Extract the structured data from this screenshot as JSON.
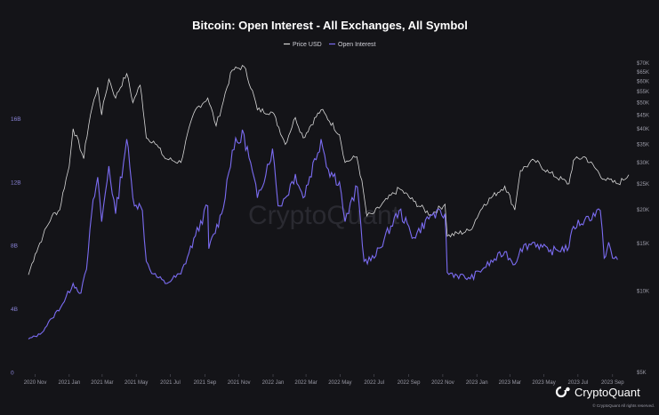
{
  "chart_data": {
    "type": "line",
    "title": "Bitcoin: Open Interest - All Exchanges, All Symbol",
    "legend_position": "top-center",
    "grid": false,
    "x_ticks": [
      "2020 Nov",
      "2021 Jan",
      "2021 Mar",
      "2021 May",
      "2021 Jul",
      "2021 Sep",
      "2021 Nov",
      "2022 Jan",
      "2022 Mar",
      "2022 May",
      "2022 Jul",
      "2022 Sep",
      "2022 Nov",
      "2023 Jan",
      "2023 Mar",
      "2023 May",
      "2023 Jul",
      "2023 Sep"
    ],
    "x_range": [
      "2020-10-20",
      "2023-09-30"
    ],
    "y_left": {
      "ticks": [
        "0",
        "4B",
        "8B",
        "12B",
        "16B"
      ],
      "range": [
        0,
        20
      ]
    },
    "y_right": {
      "scale": "log",
      "ticks": [
        "$5K",
        "$10K",
        "$15K",
        "$20K",
        "$25K",
        "$30K",
        "$35K",
        "$40K",
        "$45K",
        "$50K",
        "$55K",
        "$60K",
        "$65K",
        "$70K"
      ],
      "range": [
        5,
        75
      ]
    },
    "series": [
      {
        "name": "Price USD",
        "color": "#d8d8d8",
        "axis": "right",
        "points": [
          [
            "2020-10-20",
            11.5
          ],
          [
            "2020-11-01",
            13.7
          ],
          [
            "2020-11-15",
            16.0
          ],
          [
            "2020-12-01",
            19.0
          ],
          [
            "2020-12-15",
            20.0
          ],
          [
            "2021-01-01",
            29.0
          ],
          [
            "2021-01-08",
            40.0
          ],
          [
            "2021-01-27",
            31.0
          ],
          [
            "2021-02-08",
            45.0
          ],
          [
            "2021-02-21",
            57.0
          ],
          [
            "2021-02-28",
            45.0
          ],
          [
            "2021-03-13",
            61.0
          ],
          [
            "2021-03-25",
            52.0
          ],
          [
            "2021-04-14",
            64.0
          ],
          [
            "2021-04-25",
            50.0
          ],
          [
            "2021-05-08",
            58.0
          ],
          [
            "2021-05-19",
            37.0
          ],
          [
            "2021-06-01",
            36.0
          ],
          [
            "2021-06-22",
            31.0
          ],
          [
            "2021-07-20",
            30.0
          ],
          [
            "2021-08-15",
            47.0
          ],
          [
            "2021-09-06",
            52.0
          ],
          [
            "2021-09-21",
            41.0
          ],
          [
            "2021-10-01",
            48.0
          ],
          [
            "2021-10-20",
            66.0
          ],
          [
            "2021-11-10",
            68.0
          ],
          [
            "2021-12-04",
            47.0
          ],
          [
            "2021-12-31",
            46.0
          ],
          [
            "2022-01-23",
            35.0
          ],
          [
            "2022-02-10",
            44.0
          ],
          [
            "2022-02-24",
            37.0
          ],
          [
            "2022-03-28",
            47.0
          ],
          [
            "2022-04-30",
            38.0
          ],
          [
            "2022-05-10",
            30.0
          ],
          [
            "2022-05-31",
            31.5
          ],
          [
            "2022-06-18",
            19.0
          ],
          [
            "2022-07-01",
            19.5
          ],
          [
            "2022-08-15",
            24.0
          ],
          [
            "2022-09-10",
            21.5
          ],
          [
            "2022-10-10",
            19.2
          ],
          [
            "2022-11-05",
            21.0
          ],
          [
            "2022-11-09",
            16.0
          ],
          [
            "2022-12-20",
            16.8
          ],
          [
            "2023-01-14",
            21.0
          ],
          [
            "2023-02-20",
            24.5
          ],
          [
            "2023-03-10",
            20.0
          ],
          [
            "2023-03-20",
            28.0
          ],
          [
            "2023-04-14",
            30.5
          ],
          [
            "2023-05-10",
            27.5
          ],
          [
            "2023-06-15",
            25.0
          ],
          [
            "2023-06-23",
            30.5
          ],
          [
            "2023-07-13",
            31.5
          ],
          [
            "2023-08-17",
            26.0
          ],
          [
            "2023-09-11",
            25.0
          ],
          [
            "2023-09-30",
            27.0
          ]
        ]
      },
      {
        "name": "Open Interest",
        "color": "#7b6cf2",
        "axis": "left",
        "points": [
          [
            "2020-10-20",
            2.1
          ],
          [
            "2020-11-10",
            2.4
          ],
          [
            "2020-12-01",
            3.4
          ],
          [
            "2020-12-20",
            4.3
          ],
          [
            "2021-01-08",
            5.6
          ],
          [
            "2021-01-22",
            5.0
          ],
          [
            "2021-02-01",
            6.5
          ],
          [
            "2021-02-10",
            10.0
          ],
          [
            "2021-02-21",
            12.3
          ],
          [
            "2021-02-28",
            9.5
          ],
          [
            "2021-03-13",
            13.0
          ],
          [
            "2021-03-25",
            10.0
          ],
          [
            "2021-04-14",
            14.7
          ],
          [
            "2021-04-25",
            11.0
          ],
          [
            "2021-05-12",
            10.2
          ],
          [
            "2021-05-19",
            7.0
          ],
          [
            "2021-06-01",
            6.2
          ],
          [
            "2021-06-22",
            5.6
          ],
          [
            "2021-07-20",
            6.2
          ],
          [
            "2021-08-15",
            8.6
          ],
          [
            "2021-09-06",
            10.5
          ],
          [
            "2021-09-08",
            7.8
          ],
          [
            "2021-10-01",
            10.0
          ],
          [
            "2021-10-20",
            14.0
          ],
          [
            "2021-11-10",
            15.0
          ],
          [
            "2021-12-04",
            11.0
          ],
          [
            "2021-12-31",
            14.1
          ],
          [
            "2022-01-10",
            10.5
          ],
          [
            "2022-01-23",
            11.0
          ],
          [
            "2022-02-10",
            12.5
          ],
          [
            "2022-02-24",
            11.0
          ],
          [
            "2022-03-28",
            14.7
          ],
          [
            "2022-04-10",
            12.8
          ],
          [
            "2022-04-30",
            12.0
          ],
          [
            "2022-05-10",
            9.5
          ],
          [
            "2022-06-01",
            11.7
          ],
          [
            "2022-06-13",
            7.0
          ],
          [
            "2022-07-01",
            7.2
          ],
          [
            "2022-08-15",
            10.2
          ],
          [
            "2022-09-10",
            8.5
          ],
          [
            "2022-10-10",
            9.9
          ],
          [
            "2022-11-05",
            10.0
          ],
          [
            "2022-11-09",
            6.3
          ],
          [
            "2022-12-20",
            5.9
          ],
          [
            "2023-01-14",
            6.6
          ],
          [
            "2023-02-20",
            7.6
          ],
          [
            "2023-03-10",
            6.8
          ],
          [
            "2023-03-20",
            7.8
          ],
          [
            "2023-04-14",
            8.2
          ],
          [
            "2023-05-10",
            7.6
          ],
          [
            "2023-06-15",
            7.9
          ],
          [
            "2023-06-23",
            9.2
          ],
          [
            "2023-07-13",
            9.6
          ],
          [
            "2023-08-10",
            10.2
          ],
          [
            "2023-08-17",
            7.2
          ],
          [
            "2023-08-25",
            8.2
          ],
          [
            "2023-09-01",
            7.2
          ],
          [
            "2023-09-10",
            7.1
          ]
        ]
      }
    ]
  },
  "watermark": "CryptoQuant",
  "logo": {
    "name": "CryptoQuant",
    "icon": "cryptoquant-logo-icon"
  },
  "copyright": "© CryptoQuant All rights reserved."
}
